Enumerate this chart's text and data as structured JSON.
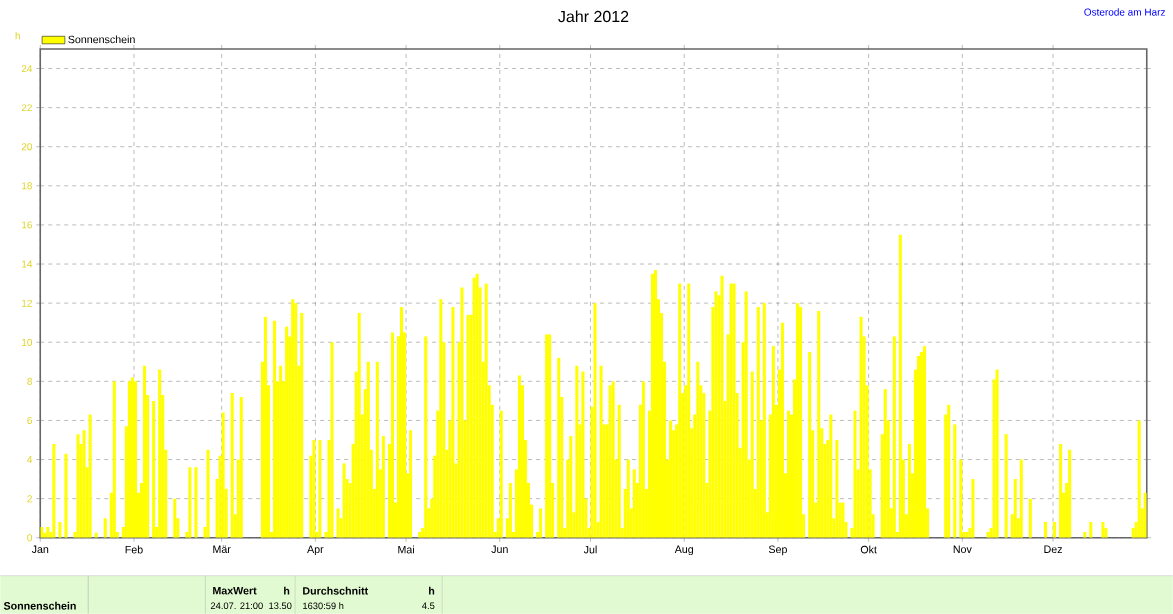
{
  "chart_data": {
    "type": "bar",
    "title": "Jahr 2012",
    "ylabel": "h",
    "annotations": [
      "Osterode am Harz",
      "Sonnenschein",
      "MaxWert",
      "h",
      "24.07.  21:00",
      "13.50",
      "Durchschnitt",
      "h",
      "1630:59 h",
      "4.5"
    ],
    "x": [
      "2012-01-01",
      "2012-01-02",
      "2012-01-03",
      "2012-01-04",
      "2012-01-05",
      "2012-01-06",
      "2012-01-07",
      "2012-01-08",
      "2012-01-09",
      "2012-01-10",
      "2012-01-11",
      "2012-01-12",
      "2012-01-13",
      "2012-01-14",
      "2012-01-15",
      "2012-01-16",
      "2012-01-17",
      "2012-01-18",
      "2012-01-19",
      "2012-01-20",
      "2012-01-21",
      "2012-01-22",
      "2012-01-23",
      "2012-01-24",
      "2012-01-25",
      "2012-01-26",
      "2012-01-27",
      "2012-01-28",
      "2012-01-29",
      "2012-01-30",
      "2012-01-31",
      "2012-02-01",
      "2012-02-02",
      "2012-02-03",
      "2012-02-04",
      "2012-02-05",
      "2012-02-06",
      "2012-02-07",
      "2012-02-08",
      "2012-02-09",
      "2012-02-10",
      "2012-02-11",
      "2012-02-12",
      "2012-02-13",
      "2012-02-14",
      "2012-02-15",
      "2012-02-16",
      "2012-02-17",
      "2012-02-18",
      "2012-02-19",
      "2012-02-20",
      "2012-02-21",
      "2012-02-22",
      "2012-02-23",
      "2012-02-24",
      "2012-02-25",
      "2012-02-26",
      "2012-02-27",
      "2012-02-28",
      "2012-02-29",
      "2012-03-01",
      "2012-03-02",
      "2012-03-03",
      "2012-03-04",
      "2012-03-05",
      "2012-03-06",
      "2012-03-07",
      "2012-03-08",
      "2012-03-09",
      "2012-03-10",
      "2012-03-11",
      "2012-03-12",
      "2012-03-13",
      "2012-03-14",
      "2012-03-15",
      "2012-03-16",
      "2012-03-17",
      "2012-03-18",
      "2012-03-19",
      "2012-03-20",
      "2012-03-21",
      "2012-03-22",
      "2012-03-23",
      "2012-03-24",
      "2012-03-25",
      "2012-03-26",
      "2012-03-27",
      "2012-03-28",
      "2012-03-29",
      "2012-03-30",
      "2012-03-31",
      "2012-04-01",
      "2012-04-02",
      "2012-04-03",
      "2012-04-04",
      "2012-04-05",
      "2012-04-06",
      "2012-04-07",
      "2012-04-08",
      "2012-04-09",
      "2012-04-10",
      "2012-04-11",
      "2012-04-12",
      "2012-04-13",
      "2012-04-14",
      "2012-04-15",
      "2012-04-16",
      "2012-04-17",
      "2012-04-18",
      "2012-04-19",
      "2012-04-20",
      "2012-04-21",
      "2012-04-22",
      "2012-04-23",
      "2012-04-24",
      "2012-04-25",
      "2012-04-26",
      "2012-04-27",
      "2012-04-28",
      "2012-04-29",
      "2012-04-30",
      "2012-05-01",
      "2012-05-02",
      "2012-05-03",
      "2012-05-04",
      "2012-05-05",
      "2012-05-06",
      "2012-05-07",
      "2012-05-08",
      "2012-05-09",
      "2012-05-10",
      "2012-05-11",
      "2012-05-12",
      "2012-05-13",
      "2012-05-14",
      "2012-05-15",
      "2012-05-16",
      "2012-05-17",
      "2012-05-18",
      "2012-05-19",
      "2012-05-20",
      "2012-05-21",
      "2012-05-22",
      "2012-05-23",
      "2012-05-24",
      "2012-05-25",
      "2012-05-26",
      "2012-05-27",
      "2012-05-28",
      "2012-05-29",
      "2012-05-30",
      "2012-05-31",
      "2012-06-01",
      "2012-06-02",
      "2012-06-03",
      "2012-06-04",
      "2012-06-05",
      "2012-06-06",
      "2012-06-07",
      "2012-06-08",
      "2012-06-09",
      "2012-06-10",
      "2012-06-11",
      "2012-06-12",
      "2012-06-13",
      "2012-06-14",
      "2012-06-15",
      "2012-06-16",
      "2012-06-17",
      "2012-06-18",
      "2012-06-19",
      "2012-06-20",
      "2012-06-21",
      "2012-06-22",
      "2012-06-23",
      "2012-06-24",
      "2012-06-25",
      "2012-06-26",
      "2012-06-27",
      "2012-06-28",
      "2012-06-29",
      "2012-06-30",
      "2012-07-01",
      "2012-07-02",
      "2012-07-03",
      "2012-07-04",
      "2012-07-05",
      "2012-07-06",
      "2012-07-07",
      "2012-07-08",
      "2012-07-09",
      "2012-07-10",
      "2012-07-11",
      "2012-07-12",
      "2012-07-13",
      "2012-07-14",
      "2012-07-15",
      "2012-07-16",
      "2012-07-17",
      "2012-07-18",
      "2012-07-19",
      "2012-07-20",
      "2012-07-21",
      "2012-07-22",
      "2012-07-23",
      "2012-07-24",
      "2012-07-25",
      "2012-07-26",
      "2012-07-27",
      "2012-07-28",
      "2012-07-29",
      "2012-07-30",
      "2012-07-31",
      "2012-08-01",
      "2012-08-02",
      "2012-08-03",
      "2012-08-04",
      "2012-08-05",
      "2012-08-06",
      "2012-08-07",
      "2012-08-08",
      "2012-08-09",
      "2012-08-10",
      "2012-08-11",
      "2012-08-12",
      "2012-08-13",
      "2012-08-14",
      "2012-08-15",
      "2012-08-16",
      "2012-08-17",
      "2012-08-18",
      "2012-08-19",
      "2012-08-20",
      "2012-08-21",
      "2012-08-22",
      "2012-08-23",
      "2012-08-24",
      "2012-08-25",
      "2012-08-26",
      "2012-08-27",
      "2012-08-28",
      "2012-08-29",
      "2012-08-30",
      "2012-08-31",
      "2012-09-01",
      "2012-09-02",
      "2012-09-03",
      "2012-09-04",
      "2012-09-05",
      "2012-09-06",
      "2012-09-07",
      "2012-09-08",
      "2012-09-09",
      "2012-09-10",
      "2012-09-11",
      "2012-09-12",
      "2012-09-13",
      "2012-09-14",
      "2012-09-15",
      "2012-09-16",
      "2012-09-17",
      "2012-09-18",
      "2012-09-19",
      "2012-09-20",
      "2012-09-21",
      "2012-09-22",
      "2012-09-23",
      "2012-09-24",
      "2012-09-25",
      "2012-09-26",
      "2012-09-27",
      "2012-09-28",
      "2012-09-29",
      "2012-09-30",
      "2012-10-01",
      "2012-10-02",
      "2012-10-03",
      "2012-10-04",
      "2012-10-05",
      "2012-10-06",
      "2012-10-07",
      "2012-10-08",
      "2012-10-09",
      "2012-10-10",
      "2012-10-11",
      "2012-10-12",
      "2012-10-13",
      "2012-10-14",
      "2012-10-15",
      "2012-10-16",
      "2012-10-17",
      "2012-10-18",
      "2012-10-19",
      "2012-10-20",
      "2012-10-21",
      "2012-10-22",
      "2012-10-23",
      "2012-10-24",
      "2012-10-25",
      "2012-10-26",
      "2012-10-27",
      "2012-10-28",
      "2012-10-29",
      "2012-10-30",
      "2012-10-31",
      "2012-11-01",
      "2012-11-02",
      "2012-11-03",
      "2012-11-04",
      "2012-11-05",
      "2012-11-06",
      "2012-11-07",
      "2012-11-08",
      "2012-11-09",
      "2012-11-10",
      "2012-11-11",
      "2012-11-12",
      "2012-11-13",
      "2012-11-14",
      "2012-11-15",
      "2012-11-16",
      "2012-11-17",
      "2012-11-18",
      "2012-11-19",
      "2012-11-20",
      "2012-11-21",
      "2012-11-22",
      "2012-11-23",
      "2012-11-24",
      "2012-11-25",
      "2012-11-26",
      "2012-11-27",
      "2012-11-28",
      "2012-11-29",
      "2012-11-30",
      "2012-12-01",
      "2012-12-02",
      "2012-12-03",
      "2012-12-04",
      "2012-12-05",
      "2012-12-06",
      "2012-12-07",
      "2012-12-08",
      "2012-12-09",
      "2012-12-10",
      "2012-12-11",
      "2012-12-12",
      "2012-12-13",
      "2012-12-14",
      "2012-12-15",
      "2012-12-16",
      "2012-12-17",
      "2012-12-18",
      "2012-12-19",
      "2012-12-20",
      "2012-12-21",
      "2012-12-22",
      "2012-12-23",
      "2012-12-24",
      "2012-12-25",
      "2012-12-26",
      "2012-12-27",
      "2012-12-28",
      "2012-12-29",
      "2012-12-30",
      "2012-12-31"
    ],
    "series": [
      {
        "name": "Sonnenschein",
        "color": "#ffff00",
        "values": [
          0.55,
          0.25,
          0.55,
          0.3,
          4.8,
          0,
          0.8,
          0,
          4.3,
          0,
          0,
          0.3,
          5.3,
          4.8,
          5.5,
          3.6,
          6.3,
          0,
          0.25,
          0,
          0,
          1.0,
          0,
          2.3,
          8.0,
          0.3,
          0,
          0.55,
          5.7,
          8.0,
          8.2,
          8.0,
          2.3,
          2.8,
          8.8,
          7.3,
          0,
          7.0,
          0.55,
          8.6,
          7.3,
          4.5,
          0,
          0,
          2.0,
          1.0,
          0,
          0,
          0.3,
          3.6,
          0,
          3.6,
          0,
          0,
          0.55,
          4.5,
          0,
          0,
          3.0,
          4.2,
          6.4,
          2.5,
          0,
          7.4,
          1.2,
          4.0,
          7.2,
          0,
          0,
          0,
          0,
          0,
          0,
          9.0,
          11.3,
          7.8,
          0.3,
          11.1,
          8.0,
          8.8,
          8.0,
          10.8,
          10.3,
          12.2,
          12.0,
          8.8,
          11.5,
          0,
          0,
          4.2,
          5.0,
          0.3,
          5.0,
          0,
          0.3,
          5.0,
          10.0,
          0,
          1.5,
          1.0,
          3.8,
          3.0,
          2.8,
          4.8,
          8.5,
          11.5,
          6.3,
          7.6,
          9.0,
          4.5,
          2.5,
          9.0,
          3.5,
          5.2,
          0,
          4.8,
          10.5,
          1.8,
          10.3,
          11.8,
          10.5,
          3.3,
          5.5,
          0,
          0,
          0.3,
          0.5,
          10.3,
          1.5,
          2.0,
          4.2,
          6.5,
          12.2,
          10.0,
          4.5,
          6.0,
          11.8,
          3.8,
          10.0,
          12.8,
          6.0,
          11.4,
          11.4,
          13.3,
          13.5,
          12.8,
          9.0,
          13.0,
          7.8,
          6.8,
          0.3,
          1.0,
          6.5,
          0,
          1.0,
          2.8,
          0.3,
          3.5,
          8.3,
          7.8,
          5.0,
          2.8,
          1.7,
          0,
          0.3,
          1.5,
          0,
          10.4,
          10.4,
          2.8,
          0,
          9.2,
          7.2,
          0.5,
          4.0,
          5.2,
          1.3,
          8.8,
          5.8,
          8.5,
          2.0,
          0.5,
          6.7,
          12.0,
          0.8,
          8.8,
          5.8,
          5.8,
          7.8,
          8.0,
          4.0,
          6.8,
          0.5,
          2.5,
          4.0,
          1.5,
          3.5,
          2.8,
          6.8,
          8.0,
          2.5,
          6.5,
          13.5,
          13.7,
          12.2,
          11.5,
          9.0,
          4.0,
          6.0,
          5.5,
          5.8,
          13.0,
          7.4,
          7.8,
          13.0,
          5.6,
          6.3,
          9.0,
          7.8,
          7.4,
          2.8,
          6.5,
          11.8,
          12.6,
          12.4,
          13.4,
          7.0,
          10.4,
          13.0,
          13.0,
          7.4,
          4.6,
          10.0,
          12.6,
          4.0,
          8.5,
          2.5,
          11.8,
          6.0,
          12.0,
          1.3,
          6.3,
          9.8,
          6.8,
          8.6,
          11.0,
          3.3,
          6.5,
          6.3,
          8.1,
          12.0,
          11.8,
          1.2,
          0,
          9.5,
          5.5,
          1.8,
          11.6,
          5.6,
          4.8,
          5.0,
          6.3,
          1.0,
          5.0,
          1.8,
          1.8,
          0.8,
          0,
          0.5,
          6.5,
          3.5,
          11.3,
          10.3,
          7.8,
          3.5,
          1.2,
          0,
          0,
          5.3,
          7.6,
          6.0,
          1.5,
          10.3,
          0.3,
          15.5,
          4.0,
          1.2,
          4.8,
          3.3,
          8.6,
          9.3,
          9.5,
          9.8,
          1.5,
          0,
          0,
          0,
          0,
          0,
          6.3,
          6.8,
          0,
          5.8,
          0,
          4.0,
          0.3,
          0.3,
          0.5,
          3.0,
          0,
          0,
          0,
          0,
          0.3,
          0.5,
          8.1,
          8.6,
          0,
          0,
          5.3,
          0,
          1.2,
          3.0,
          1.0,
          4.0,
          0,
          0,
          2.0,
          0,
          0,
          0,
          0,
          0.8,
          0,
          0,
          0.8,
          0,
          4.8,
          2.3,
          2.8,
          4.5,
          0,
          0,
          0,
          0,
          0.3,
          0,
          0.8,
          0,
          0,
          0,
          0.8,
          0.5,
          0,
          0,
          0,
          0,
          0,
          0,
          0,
          0,
          0.5,
          0.8,
          6.0,
          1.5,
          2.3
        ]
      }
    ],
    "xlim": [
      "2012-01-01",
      "2013-01-01"
    ],
    "ylim": [
      0,
      25
    ],
    "xticks": [
      {
        "value": "2012-01-01",
        "label": "Jan"
      },
      {
        "value": "2012-02-01",
        "label": "Feb"
      },
      {
        "value": "2012-03-01",
        "label": "Mär"
      },
      {
        "value": "2012-04-01",
        "label": "Apr"
      },
      {
        "value": "2012-05-01",
        "label": "Mai"
      },
      {
        "value": "2012-06-01",
        "label": "Jun"
      },
      {
        "value": "2012-07-01",
        "label": "Jul"
      },
      {
        "value": "2012-08-01",
        "label": "Aug"
      },
      {
        "value": "2012-09-01",
        "label": "Sep"
      },
      {
        "value": "2012-10-01",
        "label": "Okt"
      },
      {
        "value": "2012-11-01",
        "label": "Nov"
      },
      {
        "value": "2012-12-01",
        "label": "Dez"
      }
    ],
    "yticks": [
      0,
      2,
      4,
      6,
      8,
      10,
      12,
      14,
      16,
      18,
      20,
      22,
      24
    ],
    "grid": true,
    "legend": "top left"
  }
}
